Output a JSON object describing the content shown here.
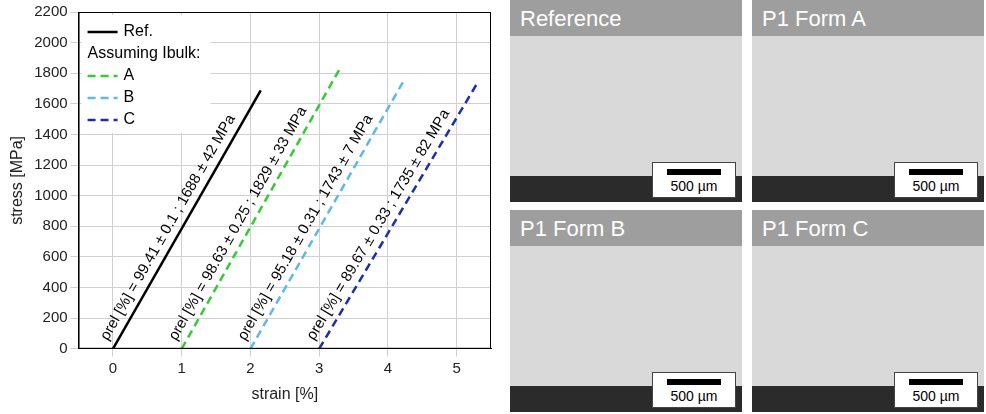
{
  "chart_data": {
    "type": "line",
    "x_label": "strain [%]",
    "y_label": "stress [MPa]",
    "xlim": [
      -0.5,
      5.5
    ],
    "xticks": [
      0,
      1,
      2,
      3,
      4,
      5
    ],
    "ylim": [
      0,
      2200
    ],
    "yticks": [
      0,
      200,
      400,
      600,
      800,
      1000,
      1200,
      1400,
      1600,
      1800,
      2000,
      2200
    ],
    "grid": true,
    "legend": "upper left",
    "legend_title": "Assuming Ibulk:",
    "series": [
      {
        "name": "Ref.",
        "color": "#000000",
        "line_style": "solid",
        "x": [
          0,
          2.15
        ],
        "values": [
          0,
          1688
        ],
        "annotation": "ρrel [%] = 99.41 ± 0.1 ; 1688 ± 42 MPa"
      },
      {
        "name": "A",
        "color": "#33cc33",
        "line_style": "dashed",
        "x": [
          1,
          3.3
        ],
        "values": [
          0,
          1829
        ],
        "annotation": "ρrel [%] = 98.63 ± 0.25 ; 1829 ± 33 MPa"
      },
      {
        "name": "B",
        "color": "#5bb8f0",
        "line_style": "dashed",
        "x": [
          2,
          4.22
        ],
        "values": [
          0,
          1743
        ],
        "annotation": "ρrel [%] = 95.18 ± 0.31 ; 1743 ± 7 MPa"
      },
      {
        "name": "C",
        "color": "#1a2fb0",
        "line_style": "dashed",
        "x": [
          3,
          5.3
        ],
        "values": [
          0,
          1735
        ],
        "annotation": "ρrel [%] = 89.67 ± 0.33 ; 1735 ± 82 MPa"
      }
    ]
  },
  "micrographs": [
    {
      "title": "Reference",
      "scale_bar": "500 µm"
    },
    {
      "title": "P1 Form A",
      "scale_bar": "500 µm"
    },
    {
      "title": "P1 Form B",
      "scale_bar": "500 µm"
    },
    {
      "title": "P1 Form C",
      "scale_bar": "500 µm"
    }
  ]
}
